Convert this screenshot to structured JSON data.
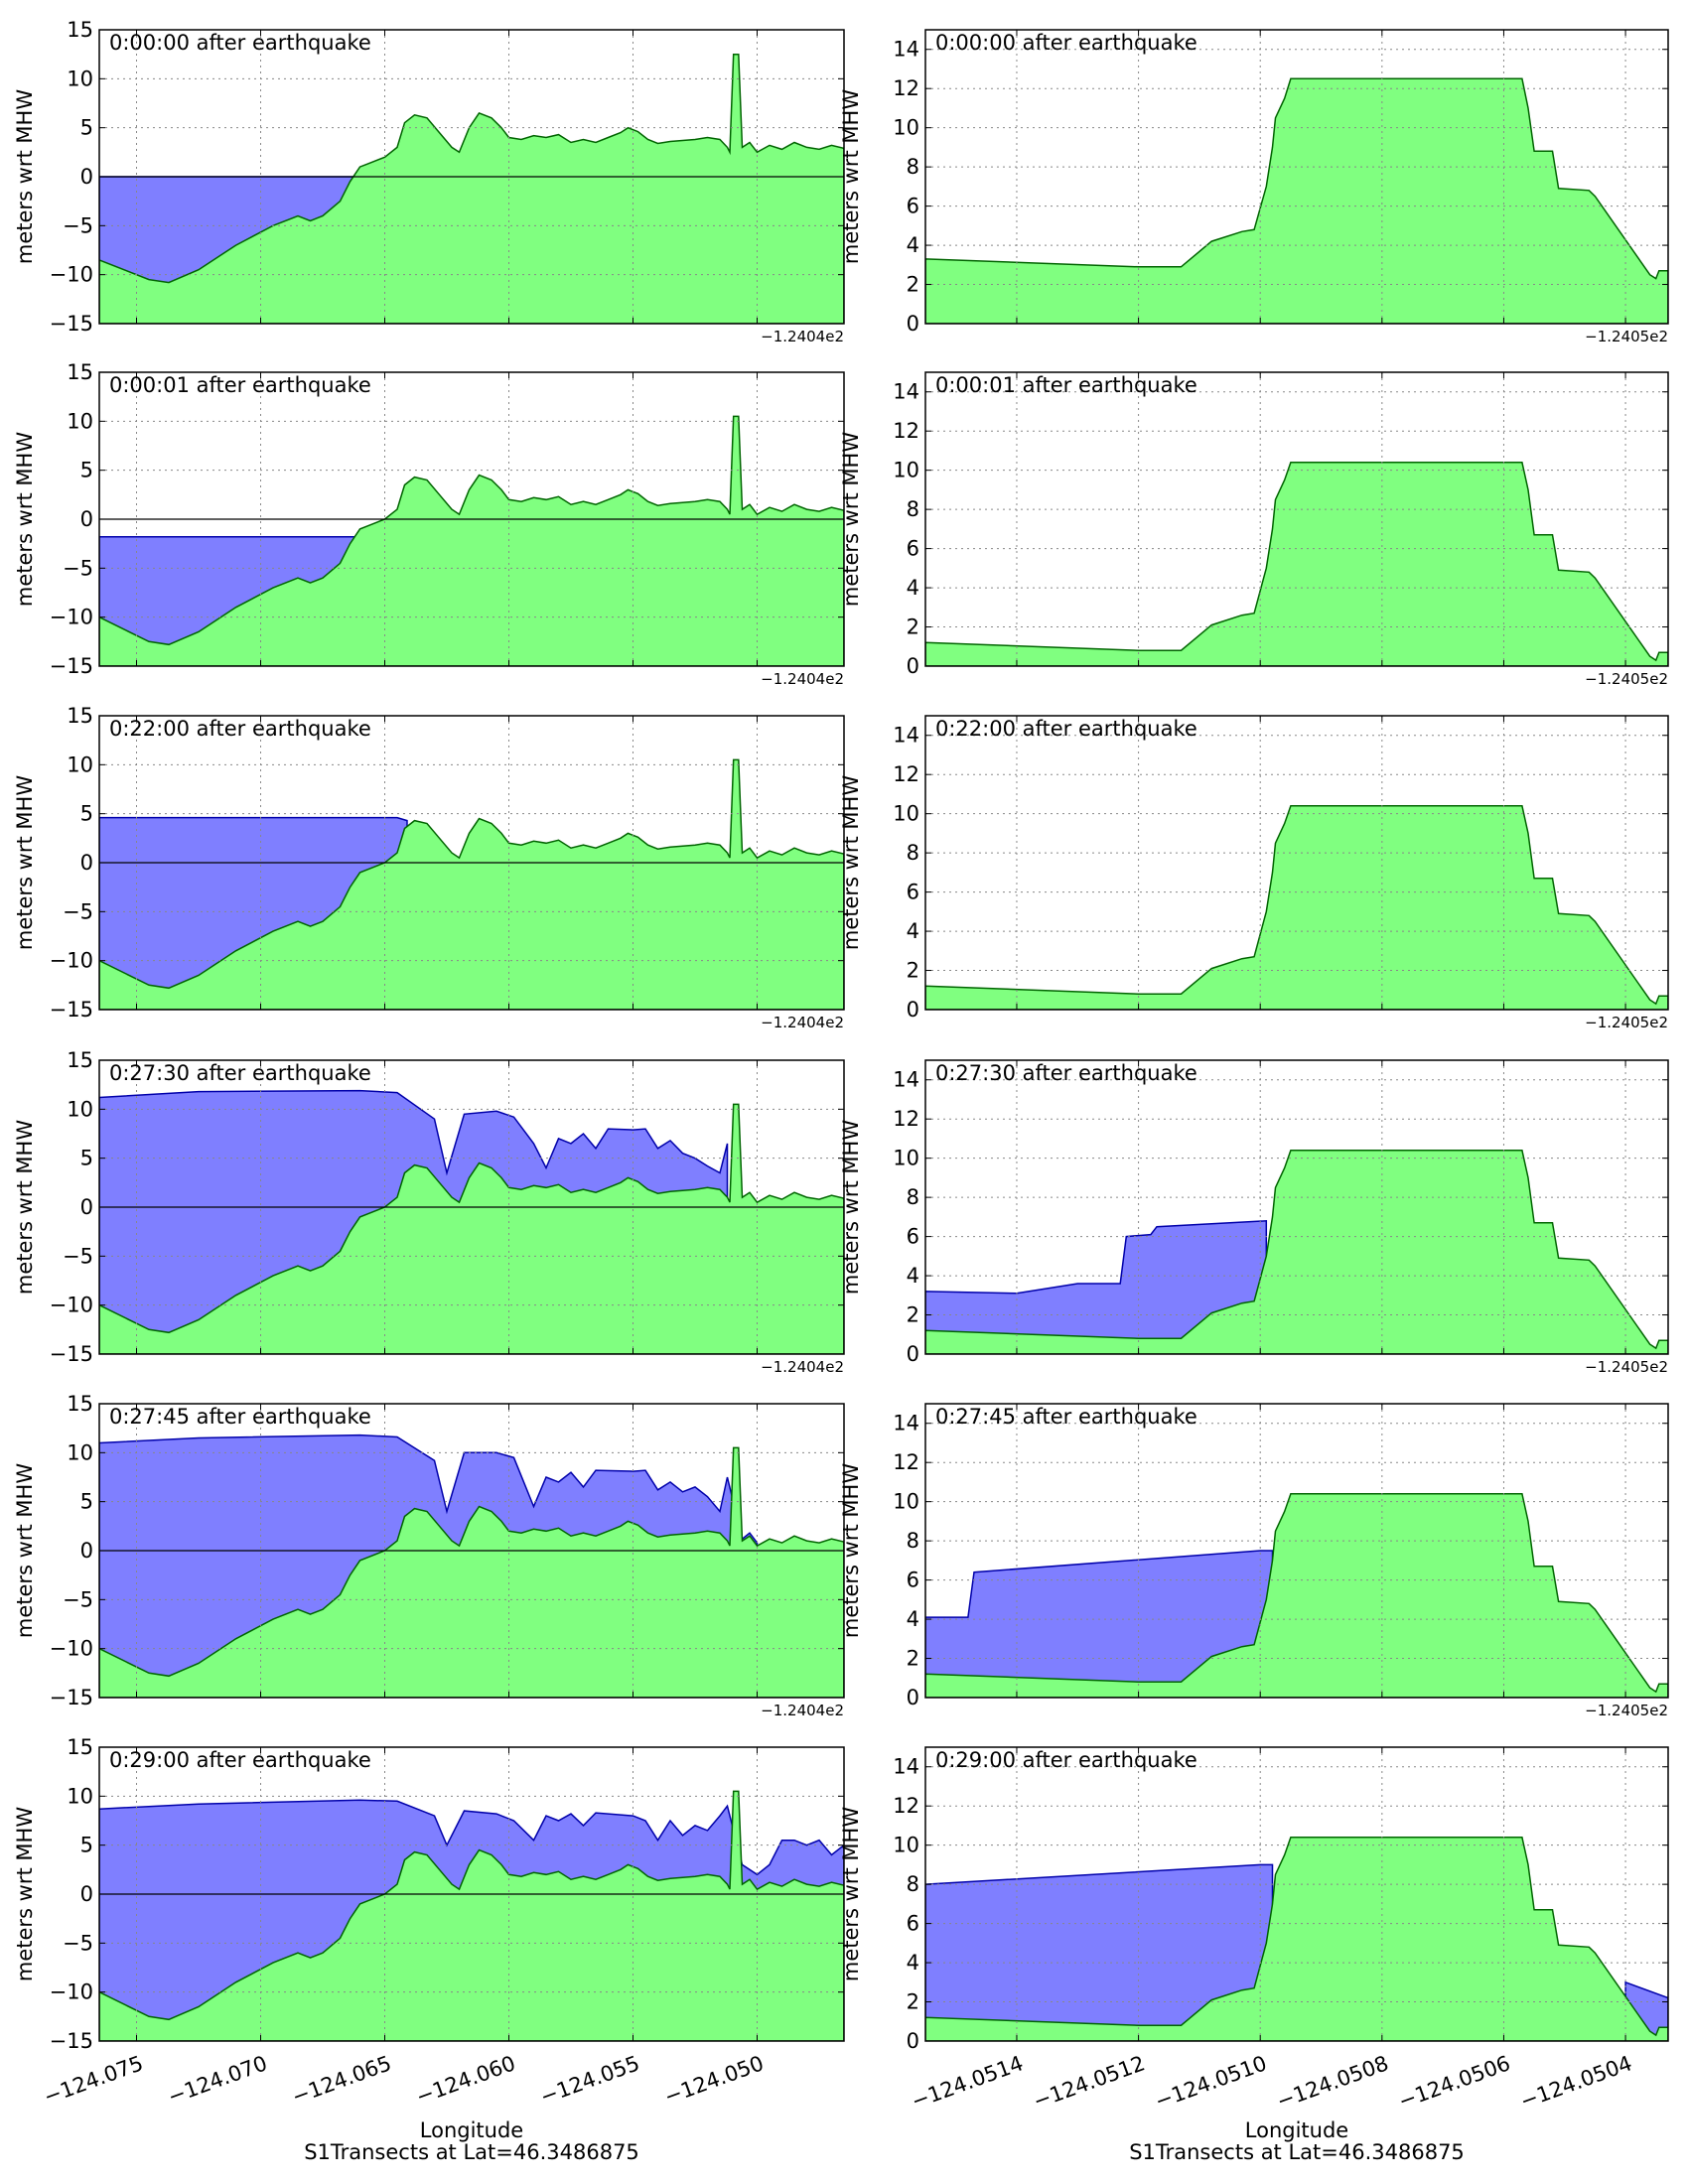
{
  "figure": {
    "xlabel": "Longitude",
    "caption": "S1Transects at Lat=46.3486875",
    "ylabel": "meters wrt MHW",
    "colors": {
      "water": "#7f7fff",
      "water_edge": "#0000aa",
      "land": "#80ff80",
      "land_edge": "#006400",
      "frame": "#000000",
      "grid": "#888888"
    }
  },
  "chart_data": [
    {
      "panel": "left",
      "type": "area",
      "xlim": [
        -124.0765,
        -124.0465
      ],
      "ylim": [
        -15,
        15
      ],
      "yticks": [
        -15,
        -10,
        -5,
        0,
        5,
        10,
        15
      ],
      "ytick_labels": [
        "−15",
        "−10",
        "−5",
        "0",
        "5",
        "10",
        "15"
      ],
      "xticks": [
        -124.075,
        -124.07,
        -124.065,
        -124.06,
        -124.055,
        -124.05
      ],
      "xtick_labels": [
        "−124.075",
        "−124.070",
        "−124.065",
        "−124.060",
        "−124.055",
        "−124.050"
      ],
      "offset_label": "−1.2404e2",
      "reference_line": 0,
      "grid": true,
      "topography_series": {
        "name": "topography",
        "x": [
          -124.0765,
          -124.0745,
          -124.0737,
          -124.0725,
          -124.071,
          -124.0695,
          -124.0685,
          -124.068,
          -124.0675,
          -124.0668,
          -124.0664,
          -124.066,
          -124.0657,
          -124.065,
          -124.0645,
          -124.0642,
          -124.0638,
          -124.0633,
          -124.0628,
          -124.0623,
          -124.062,
          -124.0616,
          -124.0612,
          -124.0607,
          -124.0603,
          -124.06,
          -124.0595,
          -124.059,
          -124.0585,
          -124.058,
          -124.0575,
          -124.057,
          -124.0565,
          -124.056,
          -124.0555,
          -124.0552,
          -124.0548,
          -124.0544,
          -124.054,
          -124.0535,
          -124.053,
          -124.0525,
          -124.052,
          -124.0515,
          -124.0512,
          -124.0511,
          -124.05095,
          -124.05075,
          -124.0506,
          -124.0503,
          -124.05,
          -124.0495,
          -124.049,
          -124.0485,
          -124.048,
          -124.0475,
          -124.047,
          -124.0465
        ],
        "y_initial": [
          -8.5,
          -10.5,
          -10.8,
          -9.5,
          -7.0,
          -5.0,
          -4.0,
          -4.5,
          -4.0,
          -2.5,
          -0.5,
          1.0,
          1.3,
          2.0,
          3.0,
          5.5,
          6.3,
          6.0,
          4.5,
          3.0,
          2.5,
          5.0,
          6.5,
          6.0,
          5.0,
          4.0,
          3.8,
          4.2,
          4.0,
          4.3,
          3.5,
          3.8,
          3.5,
          4.0,
          4.5,
          5.0,
          4.6,
          3.8,
          3.4,
          3.6,
          3.7,
          3.8,
          4.0,
          3.8,
          3.0,
          2.5,
          12.5,
          12.5,
          3.0,
          3.5,
          2.5,
          3.2,
          2.8,
          3.5,
          3.0,
          2.8,
          3.2,
          2.9
        ],
        "y_later": [
          -10.0,
          -12.5,
          -12.8,
          -11.5,
          -9.0,
          -7.0,
          -6.0,
          -6.5,
          -6.0,
          -4.5,
          -2.5,
          -1.0,
          -0.7,
          0.0,
          1.0,
          3.5,
          4.3,
          4.0,
          2.5,
          1.0,
          0.5,
          3.0,
          4.5,
          4.0,
          3.0,
          2.0,
          1.8,
          2.2,
          2.0,
          2.3,
          1.5,
          1.8,
          1.5,
          2.0,
          2.5,
          3.0,
          2.6,
          1.8,
          1.4,
          1.6,
          1.7,
          1.8,
          2.0,
          1.8,
          1.0,
          0.5,
          10.5,
          10.5,
          1.0,
          1.5,
          0.5,
          1.2,
          0.8,
          1.5,
          1.0,
          0.8,
          1.2,
          0.9
        ]
      },
      "panels": [
        {
          "title": "0:00:00 after earthquake",
          "topography": "y_initial",
          "water": [
            [
              -124.0765,
              0
            ],
            [
              -124.0661,
              0
            ]
          ]
        },
        {
          "title": "0:00:01 after earthquake",
          "topography": "y_later",
          "water": [
            [
              -124.0765,
              -1.8
            ],
            [
              -124.0661,
              -1.8
            ]
          ]
        },
        {
          "title": "0:22:00 after earthquake",
          "topography": "y_later",
          "water": [
            [
              -124.0765,
              4.6
            ],
            [
              -124.0645,
              4.6
            ],
            [
              -124.0641,
              4.3
            ]
          ]
        },
        {
          "title": "0:27:30 after earthquake",
          "topography": "y_later",
          "water": [
            [
              -124.0765,
              11.2
            ],
            [
              -124.0725,
              11.8
            ],
            [
              -124.066,
              11.9
            ],
            [
              -124.0645,
              11.7
            ],
            [
              -124.063,
              9.0
            ],
            [
              -124.0625,
              3.5
            ],
            [
              -124.0618,
              9.5
            ],
            [
              -124.0605,
              9.8
            ],
            [
              -124.0598,
              9.2
            ],
            [
              -124.059,
              6.5
            ],
            [
              -124.0585,
              4.0
            ],
            [
              -124.058,
              7.0
            ],
            [
              -124.0575,
              6.5
            ],
            [
              -124.057,
              7.5
            ],
            [
              -124.0565,
              6.0
            ],
            [
              -124.056,
              8.0
            ],
            [
              -124.055,
              7.9
            ],
            [
              -124.0545,
              8.0
            ],
            [
              -124.054,
              6.0
            ],
            [
              -124.0535,
              6.8
            ],
            [
              -124.053,
              5.5
            ],
            [
              -124.0525,
              5.0
            ],
            [
              -124.052,
              4.2
            ],
            [
              -124.0515,
              3.5
            ],
            [
              -124.0512,
              6.5
            ]
          ]
        },
        {
          "title": "0:27:45 after earthquake",
          "topography": "y_later",
          "water": [
            [
              -124.0765,
              11.0
            ],
            [
              -124.0725,
              11.5
            ],
            [
              -124.066,
              11.8
            ],
            [
              -124.0645,
              11.6
            ],
            [
              -124.063,
              9.2
            ],
            [
              -124.0625,
              4.0
            ],
            [
              -124.0618,
              10.0
            ],
            [
              -124.0605,
              10.0
            ],
            [
              -124.0598,
              9.5
            ],
            [
              -124.059,
              4.5
            ],
            [
              -124.0585,
              7.5
            ],
            [
              -124.058,
              7.0
            ],
            [
              -124.0575,
              8.0
            ],
            [
              -124.057,
              6.5
            ],
            [
              -124.0565,
              8.2
            ],
            [
              -124.055,
              8.1
            ],
            [
              -124.0545,
              8.2
            ],
            [
              -124.054,
              6.2
            ],
            [
              -124.0535,
              7.0
            ],
            [
              -124.053,
              6.0
            ],
            [
              -124.0525,
              6.5
            ],
            [
              -124.052,
              5.5
            ],
            [
              -124.0515,
              4.0
            ],
            [
              -124.0512,
              7.5
            ],
            [
              -124.0506,
              1.2
            ],
            [
              -124.0503,
              1.8
            ],
            [
              -124.05,
              0.8
            ]
          ]
        },
        {
          "title": "0:29:00 after earthquake",
          "topography": "y_later",
          "water": [
            [
              -124.0765,
              8.7
            ],
            [
              -124.0725,
              9.2
            ],
            [
              -124.066,
              9.6
            ],
            [
              -124.0645,
              9.5
            ],
            [
              -124.063,
              8.0
            ],
            [
              -124.0625,
              5.0
            ],
            [
              -124.0618,
              8.5
            ],
            [
              -124.0605,
              8.2
            ],
            [
              -124.0598,
              7.5
            ],
            [
              -124.059,
              5.5
            ],
            [
              -124.0585,
              8.0
            ],
            [
              -124.058,
              7.5
            ],
            [
              -124.0575,
              8.2
            ],
            [
              -124.057,
              7.0
            ],
            [
              -124.0565,
              8.3
            ],
            [
              -124.055,
              8.0
            ],
            [
              -124.0545,
              7.5
            ],
            [
              -124.054,
              5.5
            ],
            [
              -124.0535,
              7.5
            ],
            [
              -124.053,
              6.0
            ],
            [
              -124.0525,
              7.0
            ],
            [
              -124.052,
              6.5
            ],
            [
              -124.0515,
              8.0
            ],
            [
              -124.0512,
              9.0
            ],
            [
              -124.0506,
              3.0
            ],
            [
              -124.05,
              2.0
            ],
            [
              -124.0495,
              3.0
            ],
            [
              -124.049,
              5.5
            ],
            [
              -124.0485,
              5.5
            ],
            [
              -124.048,
              5.0
            ],
            [
              -124.0475,
              5.5
            ],
            [
              -124.047,
              4.0
            ],
            [
              -124.0465,
              5.0
            ]
          ]
        }
      ]
    },
    {
      "panel": "right",
      "type": "area",
      "xlim": [
        -124.05155,
        -124.05033
      ],
      "ylim": [
        0,
        15
      ],
      "yticks": [
        0,
        2,
        4,
        6,
        8,
        10,
        12,
        14
      ],
      "ytick_labels": [
        "0",
        "2",
        "4",
        "6",
        "8",
        "10",
        "12",
        "14"
      ],
      "xticks": [
        -124.0514,
        -124.0512,
        -124.051,
        -124.0508,
        -124.0506,
        -124.0504
      ],
      "xtick_labels": [
        "−124.0514",
        "−124.0512",
        "−124.0510",
        "−124.0508",
        "−124.0506",
        "−124.0504"
      ],
      "offset_label": "−1.2405e2",
      "grid": true,
      "topography_series": {
        "name": "topography",
        "x": [
          -124.05155,
          -124.0512,
          -124.05113,
          -124.05108,
          -124.05103,
          -124.05101,
          -124.05099,
          -124.05098,
          -124.050975,
          -124.05096,
          -124.05095,
          -124.05094,
          -124.05057,
          -124.05056,
          -124.05055,
          -124.05052,
          -124.05051,
          -124.05046,
          -124.05045,
          -124.05036,
          -124.05035,
          -124.050345,
          -124.05033
        ],
        "y_initial": [
          3.3,
          2.9,
          2.9,
          4.2,
          4.7,
          4.8,
          7.0,
          9.0,
          10.5,
          11.5,
          12.5,
          12.5,
          12.5,
          11.0,
          8.8,
          8.8,
          6.9,
          6.8,
          6.5,
          2.5,
          2.3,
          2.7,
          2.7
        ],
        "y_later": [
          1.2,
          0.8,
          0.8,
          2.1,
          2.6,
          2.7,
          5.0,
          7.0,
          8.5,
          9.5,
          10.4,
          10.4,
          10.4,
          9.0,
          6.7,
          6.7,
          4.9,
          4.8,
          4.5,
          0.5,
          0.3,
          0.7,
          0.7
        ]
      },
      "panels": [
        {
          "title": "0:00:00 after earthquake",
          "topography": "y_initial",
          "water": []
        },
        {
          "title": "0:00:01 after earthquake",
          "topography": "y_later",
          "water": []
        },
        {
          "title": "0:22:00 after earthquake",
          "topography": "y_later",
          "water": []
        },
        {
          "title": "0:27:30 after earthquake",
          "topography": "y_later",
          "water": [
            [
              -124.05155,
              3.2
            ],
            [
              -124.0514,
              3.1
            ],
            [
              -124.0513,
              3.6
            ],
            [
              -124.05123,
              3.6
            ],
            [
              -124.05122,
              6.0
            ],
            [
              -124.05118,
              6.1
            ],
            [
              -124.05117,
              6.5
            ],
            [
              -124.05099,
              6.8
            ]
          ]
        },
        {
          "title": "0:27:45 after earthquake",
          "topography": "y_later",
          "water": [
            [
              -124.05155,
              4.1
            ],
            [
              -124.05148,
              4.1
            ],
            [
              -124.05147,
              6.4
            ],
            [
              -124.051,
              7.5
            ],
            [
              -124.05098,
              7.5
            ]
          ]
        },
        {
          "title": "0:29:00 after earthquake",
          "topography": "y_later",
          "water": [
            [
              -124.05155,
              8.0
            ],
            [
              -124.051,
              9.0
            ],
            [
              -124.05098,
              9.0
            ]
          ],
          "water_right": [
            [
              -124.0504,
              3.0
            ],
            [
              -124.05033,
              2.2
            ]
          ]
        }
      ]
    }
  ]
}
